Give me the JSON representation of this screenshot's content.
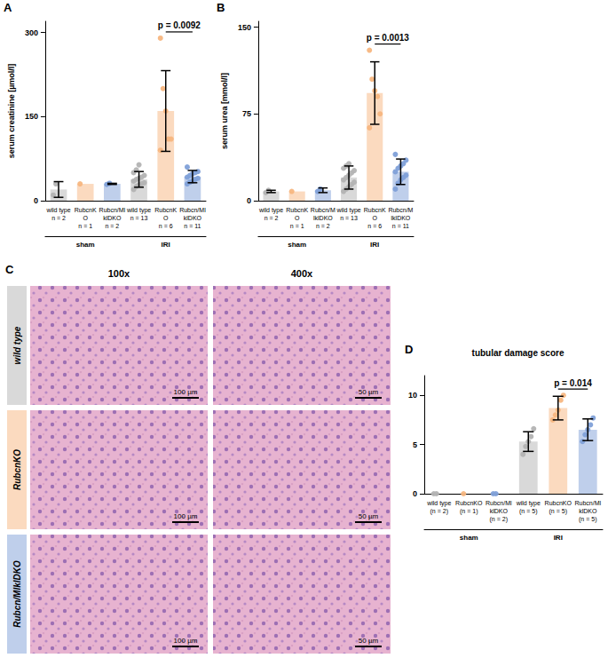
{
  "chart_data": [
    {
      "type": "bar",
      "panel_label": "A",
      "ylabel": "serum creatinine [µmol/l]",
      "categories": [
        "wild type",
        "RubcnKO",
        "Rubcn/MlklDKO",
        "wild type",
        "RubcnKO",
        "Rubcn/MlklDKO"
      ],
      "n_labels": [
        "n = 2",
        "n = 1",
        "n = 2",
        "n = 13",
        "n = 6",
        "n = 11"
      ],
      "groups": [
        "sham",
        "sham",
        "sham",
        "IRI",
        "IRI",
        "IRI"
      ],
      "values": [
        20,
        30,
        30,
        38,
        160,
        43
      ],
      "errors": [
        14,
        null,
        1,
        14,
        72,
        11
      ],
      "points": [
        [
          10,
          30
        ],
        [
          30
        ],
        [
          29,
          31
        ],
        [
          20,
          25,
          28,
          30,
          32,
          35,
          38,
          40,
          42,
          45,
          50,
          55,
          64
        ],
        [
          290,
          200,
          160,
          110,
          110,
          90
        ],
        [
          30,
          33,
          35,
          38,
          40,
          42,
          45,
          48,
          50,
          52,
          60
        ]
      ],
      "colors": [
        "#b3b3b3",
        "#f7b680",
        "#7fa0d8",
        "#b3b3b3",
        "#f7b680",
        "#7fa0d8"
      ],
      "ylim": [
        0,
        320
      ],
      "yticks": [
        0,
        150,
        300
      ],
      "grid": false,
      "annotations": [
        {
          "text": "p = 0.0092",
          "between": [
            4,
            5
          ]
        }
      ]
    },
    {
      "type": "bar",
      "panel_label": "B",
      "ylabel": "serum urea [mmol/l]",
      "categories": [
        "wild type",
        "RubcnKO",
        "Rubcn/MlklDKO",
        "wild type",
        "RubcnKO",
        "Rubcn/MlklDKO"
      ],
      "n_labels": [
        "n = 2",
        "n = 1",
        "n = 2",
        "n = 13",
        "n = 6",
        "n = 11"
      ],
      "groups": [
        "sham",
        "sham",
        "sham",
        "IRI",
        "IRI",
        "IRI"
      ],
      "values": [
        8,
        8,
        9,
        20,
        93,
        25
      ],
      "errors": [
        1,
        null,
        2,
        10,
        27,
        11
      ],
      "points": [
        [
          7,
          9
        ],
        [
          8
        ],
        [
          8,
          10
        ],
        [
          8,
          10,
          12,
          14,
          16,
          18,
          20,
          22,
          24,
          26,
          28,
          30,
          32
        ],
        [
          130,
          105,
          95,
          90,
          75,
          63
        ],
        [
          10,
          15,
          18,
          20,
          22,
          25,
          28,
          30,
          32,
          35,
          40
        ]
      ],
      "colors": [
        "#b3b3b3",
        "#f7b680",
        "#7fa0d8",
        "#b3b3b3",
        "#f7b680",
        "#7fa0d8"
      ],
      "ylim": [
        0,
        155
      ],
      "yticks": [
        0,
        75,
        150
      ],
      "grid": false,
      "annotations": [
        {
          "text": "p = 0.0013",
          "between": [
            4,
            5
          ]
        }
      ]
    },
    {
      "type": "bar",
      "panel_label": "D",
      "title": "tubular damage score",
      "categories": [
        "wild type",
        "RubcnKO",
        "Rubcn/MlklDKO",
        "wild type",
        "RubcnKO",
        "Rubcn/MlklDKO"
      ],
      "n_labels": [
        "(n = 2)",
        "(n = 1)",
        "(n = 2)",
        "(n = 5)",
        "(n = 5)",
        "(n = 5)"
      ],
      "groups": [
        "sham",
        "sham",
        "sham",
        "IRI",
        "IRI",
        "IRI"
      ],
      "values": [
        0,
        0,
        0,
        5.3,
        8.7,
        6.5
      ],
      "errors": [
        null,
        null,
        null,
        1,
        1.2,
        1.1
      ],
      "points": [
        [
          0,
          0
        ],
        [
          0
        ],
        [
          0,
          0
        ],
        [
          4,
          4.8,
          5.3,
          5.8,
          6.6
        ],
        [
          7.5,
          8,
          8.5,
          9.5,
          10
        ],
        [
          5.3,
          6,
          6.5,
          7,
          7.7
        ]
      ],
      "colors": [
        "#b3b3b3",
        "#f7b680",
        "#7fa0d8",
        "#b3b3b3",
        "#f7b680",
        "#7fa0d8"
      ],
      "ylim": [
        0,
        12
      ],
      "yticks": [
        0,
        5,
        10
      ],
      "grid": false,
      "annotations": [
        {
          "text": "p = 0.014",
          "between": [
            4,
            5
          ]
        }
      ]
    }
  ],
  "images": {
    "panel_label": "C",
    "columns": [
      "100x",
      "400x"
    ],
    "rows": [
      "wild type",
      "RubcnKO",
      "Rubcn/MlklDKO"
    ],
    "scale_bars": [
      "100 µm",
      "50 µm"
    ]
  }
}
